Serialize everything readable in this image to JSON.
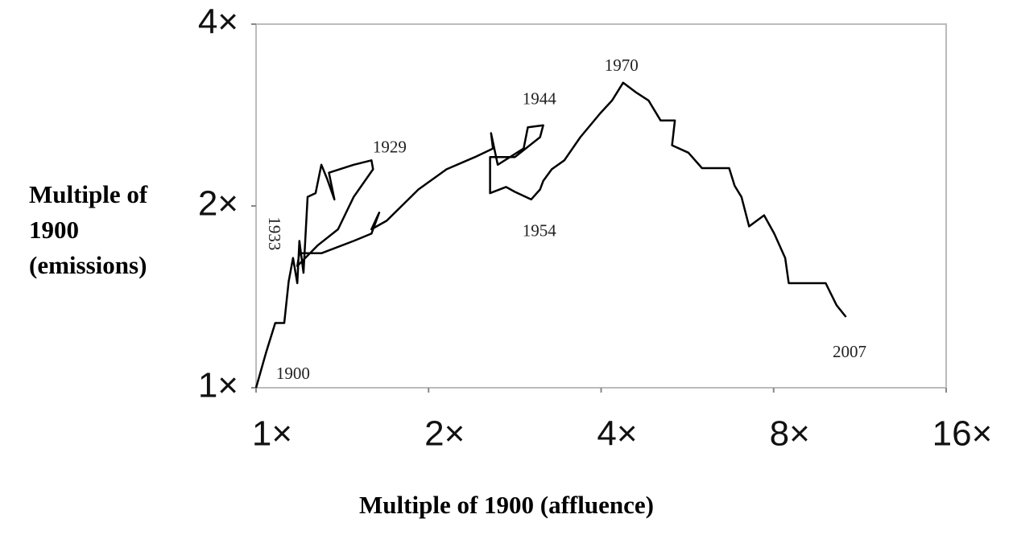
{
  "chart_data": {
    "type": "line",
    "xlabel": "Multiple of 1900 (affluence)",
    "ylabel": "Multiple of 1900 (emissions)",
    "xlog": true,
    "ylog": true,
    "grid": false,
    "xlim": [
      1,
      16
    ],
    "ylim": [
      1,
      4
    ],
    "xticks": [
      {
        "value": 1,
        "label": "1×"
      },
      {
        "value": 2,
        "label": "2×"
      },
      {
        "value": 4,
        "label": "4×"
      },
      {
        "value": 8,
        "label": "8×"
      },
      {
        "value": 16,
        "label": "16×"
      }
    ],
    "yticks": [
      {
        "value": 1,
        "label": "1×"
      },
      {
        "value": 2,
        "label": "2×"
      },
      {
        "value": 4,
        "label": "4×"
      }
    ],
    "series": [
      {
        "color": "#000000",
        "x": [
          1.0,
          1.04,
          1.08,
          1.12,
          1.14,
          1.16,
          1.18,
          1.19,
          1.21,
          1.23,
          1.27,
          1.3,
          1.33,
          1.37,
          1.34,
          1.48,
          1.59,
          1.6,
          1.48,
          1.39,
          1.28,
          1.18,
          1.19,
          1.3,
          1.48,
          1.59,
          1.64,
          1.59,
          1.69,
          1.92,
          2.15,
          2.41,
          2.59,
          2.57,
          2.64,
          2.93,
          2.98,
          3.17,
          3.13,
          2.83,
          2.56,
          2.56,
          2.73,
          2.83,
          3.02,
          3.13,
          3.17,
          3.28,
          3.45,
          3.68,
          3.99,
          4.18,
          4.37,
          4.61,
          4.84,
          5.08,
          5.38,
          5.32,
          5.68,
          6.0,
          6.69,
          6.84,
          7.03,
          7.25,
          7.7,
          8.02,
          8.38,
          8.5,
          9.86,
          10.3,
          10.7
        ],
        "values": [
          1.0,
          1.14,
          1.28,
          1.28,
          1.5,
          1.64,
          1.49,
          1.75,
          1.55,
          2.07,
          2.1,
          2.34,
          2.22,
          2.05,
          2.27,
          2.34,
          2.38,
          2.3,
          2.07,
          1.83,
          1.72,
          1.59,
          1.67,
          1.67,
          1.75,
          1.8,
          1.95,
          1.83,
          1.89,
          2.13,
          2.3,
          2.41,
          2.49,
          2.64,
          2.34,
          2.49,
          2.7,
          2.72,
          2.6,
          2.41,
          2.41,
          2.1,
          2.15,
          2.11,
          2.05,
          2.13,
          2.2,
          2.3,
          2.38,
          2.6,
          2.85,
          2.99,
          3.2,
          3.08,
          2.99,
          2.77,
          2.77,
          2.52,
          2.45,
          2.31,
          2.31,
          2.16,
          2.07,
          1.85,
          1.93,
          1.8,
          1.64,
          1.49,
          1.49,
          1.37,
          1.31
        ]
      }
    ],
    "annotations": [
      {
        "text": "1900",
        "x": 1.16,
        "y": 1.05
      },
      {
        "text": "1929",
        "x": 1.71,
        "y": 2.49
      },
      {
        "text": "1933",
        "x": 1.07,
        "y": 1.8
      },
      {
        "text": "1944",
        "x": 3.12,
        "y": 2.99
      },
      {
        "text": "1954",
        "x": 3.12,
        "y": 1.81
      },
      {
        "text": "1970",
        "x": 4.34,
        "y": 3.4
      },
      {
        "text": "2007",
        "x": 10.85,
        "y": 1.14
      }
    ]
  }
}
